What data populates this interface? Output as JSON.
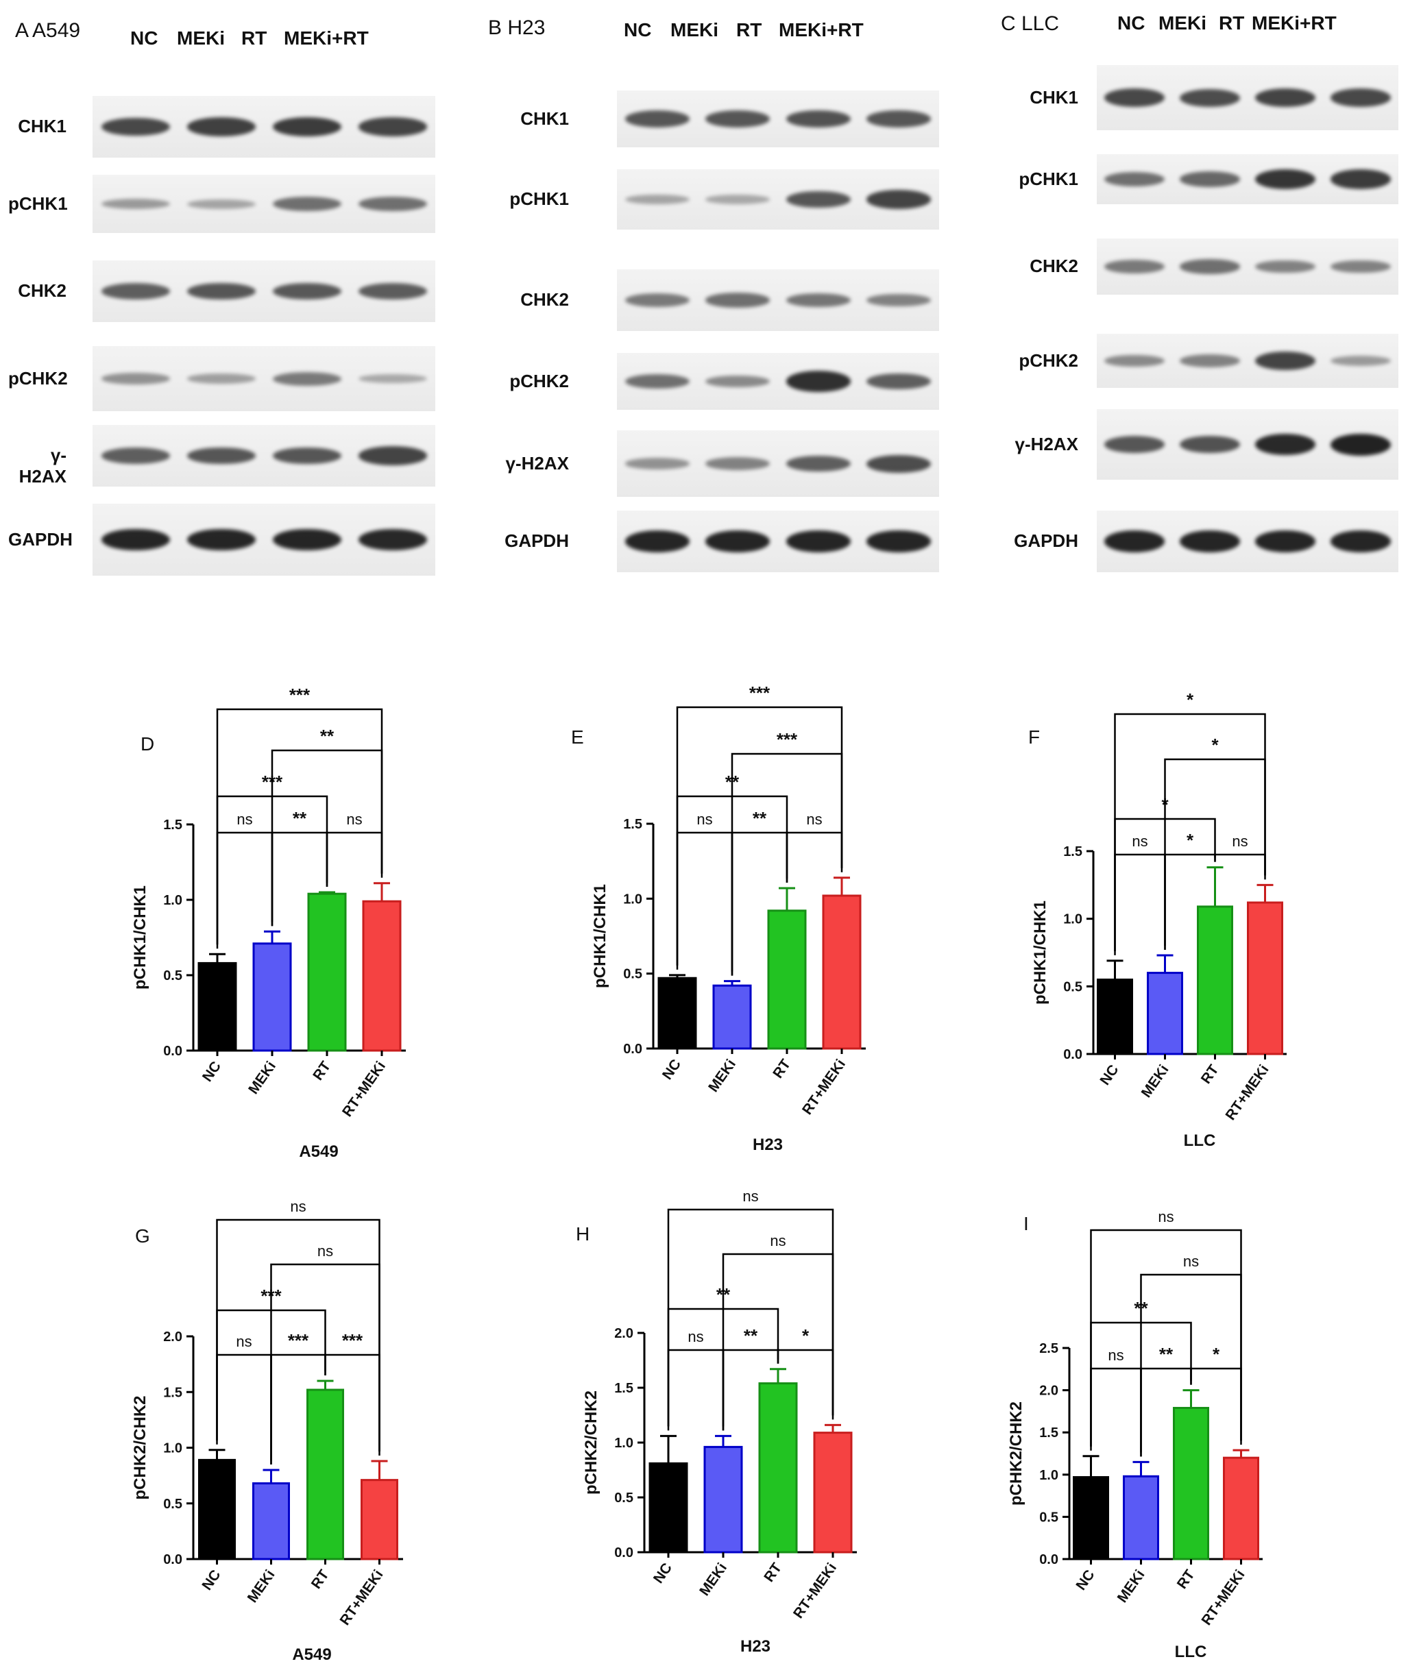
{
  "western_blots": [
    {
      "id": "A",
      "title": "A   A549",
      "conditions": [
        "NC",
        "MEKi",
        "RT",
        "MEKi+RT"
      ],
      "rows": [
        {
          "label": "CHK1",
          "intensity": [
            0.78,
            0.82,
            0.85,
            0.8
          ]
        },
        {
          "label": "pCHK1",
          "intensity": [
            0.3,
            0.25,
            0.55,
            0.55
          ]
        },
        {
          "label": "CHK2",
          "intensity": [
            0.65,
            0.7,
            0.68,
            0.66
          ]
        },
        {
          "label": "pCHK2",
          "intensity": [
            0.35,
            0.28,
            0.5,
            0.22
          ]
        },
        {
          "label": "γ-H2AX",
          "intensity": [
            0.65,
            0.7,
            0.7,
            0.8
          ]
        },
        {
          "label": "GAPDH",
          "intensity": [
            0.98,
            0.98,
            0.98,
            0.96
          ]
        }
      ]
    },
    {
      "id": "B",
      "title": "B   H23",
      "conditions": [
        "NC",
        "MEKi",
        "RT",
        "MEKi+RT"
      ],
      "rows": [
        {
          "label": "CHK1",
          "intensity": [
            0.7,
            0.7,
            0.72,
            0.7
          ]
        },
        {
          "label": "pCHK1",
          "intensity": [
            0.25,
            0.22,
            0.7,
            0.8
          ]
        },
        {
          "label": "CHK2",
          "intensity": [
            0.5,
            0.55,
            0.52,
            0.45
          ]
        },
        {
          "label": "pCHK2",
          "intensity": [
            0.55,
            0.4,
            0.92,
            0.65
          ]
        },
        {
          "label": "γ-H2AX",
          "intensity": [
            0.35,
            0.45,
            0.65,
            0.75
          ]
        },
        {
          "label": "GAPDH",
          "intensity": [
            0.98,
            0.98,
            0.98,
            0.98
          ]
        }
      ]
    },
    {
      "id": "C",
      "title": "C   LLC",
      "conditions": [
        "NC",
        "MEKi",
        "RT",
        "MEKi+RT"
      ],
      "rows": [
        {
          "label": "CHK1",
          "intensity": [
            0.78,
            0.75,
            0.8,
            0.78
          ]
        },
        {
          "label": "pCHK1",
          "intensity": [
            0.55,
            0.6,
            0.88,
            0.85
          ]
        },
        {
          "label": "CHK2",
          "intensity": [
            0.5,
            0.55,
            0.45,
            0.45
          ]
        },
        {
          "label": "pCHK2",
          "intensity": [
            0.4,
            0.45,
            0.8,
            0.3
          ]
        },
        {
          "label": "γ-H2AX",
          "intensity": [
            0.7,
            0.72,
            0.95,
            1.0
          ]
        },
        {
          "label": "GAPDH",
          "intensity": [
            0.98,
            0.98,
            0.98,
            0.98
          ]
        }
      ]
    }
  ],
  "chart_data": [
    {
      "panel": "D",
      "type": "bar",
      "xlabel": "A549",
      "ylabel": "pCHK1/CHK1",
      "categories": [
        "NC",
        "MEKi",
        "RT",
        "RT+MEKi"
      ],
      "values": [
        0.58,
        0.71,
        1.04,
        0.99
      ],
      "errors": [
        0.06,
        0.08,
        0.01,
        0.12
      ],
      "ylim": [
        0,
        1.5
      ],
      "yticks": [
        "0.0",
        "0.5",
        "1.0",
        "1.5"
      ],
      "comparisons": [
        {
          "a": 0,
          "b": 1,
          "label": "ns"
        },
        {
          "a": 1,
          "b": 2,
          "label": "**"
        },
        {
          "a": 2,
          "b": 3,
          "label": "ns"
        },
        {
          "a": 0,
          "b": 2,
          "label": "***"
        },
        {
          "a": 1,
          "b": 3,
          "label": "**"
        },
        {
          "a": 0,
          "b": 3,
          "label": "***"
        }
      ]
    },
    {
      "panel": "E",
      "type": "bar",
      "xlabel": "H23",
      "ylabel": "pCHK1/CHK1",
      "categories": [
        "NC",
        "MEKi",
        "RT",
        "RT+MEKi"
      ],
      "values": [
        0.47,
        0.42,
        0.92,
        1.02
      ],
      "errors": [
        0.02,
        0.03,
        0.15,
        0.12
      ],
      "ylim": [
        0,
        1.5
      ],
      "yticks": [
        "0.0",
        "0.5",
        "1.0",
        "1.5"
      ],
      "comparisons": [
        {
          "a": 0,
          "b": 1,
          "label": "ns"
        },
        {
          "a": 1,
          "b": 2,
          "label": "**"
        },
        {
          "a": 2,
          "b": 3,
          "label": "ns"
        },
        {
          "a": 0,
          "b": 2,
          "label": "**"
        },
        {
          "a": 1,
          "b": 3,
          "label": "***"
        },
        {
          "a": 0,
          "b": 3,
          "label": "***"
        }
      ]
    },
    {
      "panel": "F",
      "type": "bar",
      "xlabel": "LLC",
      "ylabel": "pCHK1/CHK1",
      "categories": [
        "NC",
        "MEKi",
        "RT",
        "RT+MEKi"
      ],
      "values": [
        0.55,
        0.6,
        1.09,
        1.12
      ],
      "errors": [
        0.14,
        0.13,
        0.29,
        0.13
      ],
      "ylim": [
        0,
        1.5
      ],
      "yticks": [
        "0.0",
        "0.5",
        "1.0",
        "1.5"
      ],
      "comparisons": [
        {
          "a": 0,
          "b": 1,
          "label": "ns"
        },
        {
          "a": 1,
          "b": 2,
          "label": "*"
        },
        {
          "a": 2,
          "b": 3,
          "label": "ns"
        },
        {
          "a": 0,
          "b": 2,
          "label": "*"
        },
        {
          "a": 1,
          "b": 3,
          "label": "*"
        },
        {
          "a": 0,
          "b": 3,
          "label": "*"
        }
      ]
    },
    {
      "panel": "G",
      "type": "bar",
      "xlabel": "A549",
      "ylabel": "pCHK2/CHK2",
      "categories": [
        "NC",
        "MEKi",
        "RT",
        "RT+MEKi"
      ],
      "values": [
        0.89,
        0.68,
        1.52,
        0.71
      ],
      "errors": [
        0.09,
        0.12,
        0.08,
        0.17
      ],
      "ylim": [
        0,
        2.0
      ],
      "yticks": [
        "0.0",
        "0.5",
        "1.0",
        "1.5",
        "2.0"
      ],
      "comparisons": [
        {
          "a": 0,
          "b": 1,
          "label": "ns"
        },
        {
          "a": 1,
          "b": 2,
          "label": "***"
        },
        {
          "a": 2,
          "b": 3,
          "label": "***"
        },
        {
          "a": 0,
          "b": 2,
          "label": "***"
        },
        {
          "a": 1,
          "b": 3,
          "label": "ns"
        },
        {
          "a": 0,
          "b": 3,
          "label": "ns"
        }
      ]
    },
    {
      "panel": "H",
      "type": "bar",
      "xlabel": "H23",
      "ylabel": "pCHK2/CHK2",
      "categories": [
        "NC",
        "MEKi",
        "RT",
        "RT+MEKi"
      ],
      "values": [
        0.81,
        0.96,
        1.54,
        1.09
      ],
      "errors": [
        0.25,
        0.1,
        0.13,
        0.07
      ],
      "ylim": [
        0,
        2.0
      ],
      "yticks": [
        "0.0",
        "0.5",
        "1.0",
        "1.5",
        "2.0"
      ],
      "comparisons": [
        {
          "a": 0,
          "b": 1,
          "label": "ns"
        },
        {
          "a": 1,
          "b": 2,
          "label": "**"
        },
        {
          "a": 2,
          "b": 3,
          "label": "*"
        },
        {
          "a": 0,
          "b": 2,
          "label": "**"
        },
        {
          "a": 1,
          "b": 3,
          "label": "ns"
        },
        {
          "a": 0,
          "b": 3,
          "label": "ns"
        }
      ]
    },
    {
      "panel": "I",
      "type": "bar",
      "xlabel": "LLC",
      "ylabel": "pCHK2/CHK2",
      "categories": [
        "NC",
        "MEKi",
        "RT",
        "RT+MEKi"
      ],
      "values": [
        0.97,
        0.98,
        1.79,
        1.2
      ],
      "errors": [
        0.25,
        0.17,
        0.21,
        0.09
      ],
      "ylim": [
        0,
        2.5
      ],
      "yticks": [
        "0.0",
        "0.5",
        "1.0",
        "1.5",
        "2.0",
        "2.5"
      ],
      "comparisons": [
        {
          "a": 0,
          "b": 1,
          "label": "ns"
        },
        {
          "a": 1,
          "b": 2,
          "label": "**"
        },
        {
          "a": 2,
          "b": 3,
          "label": "*"
        },
        {
          "a": 0,
          "b": 2,
          "label": "**"
        },
        {
          "a": 1,
          "b": 3,
          "label": "ns"
        },
        {
          "a": 0,
          "b": 3,
          "label": "ns"
        }
      ]
    }
  ],
  "colors": {
    "fills": [
      "#000000",
      "#5a5af5",
      "#22c322",
      "#f54242"
    ],
    "strokes": [
      "#000000",
      "#0000c8",
      "#169016",
      "#c81e1e"
    ]
  }
}
